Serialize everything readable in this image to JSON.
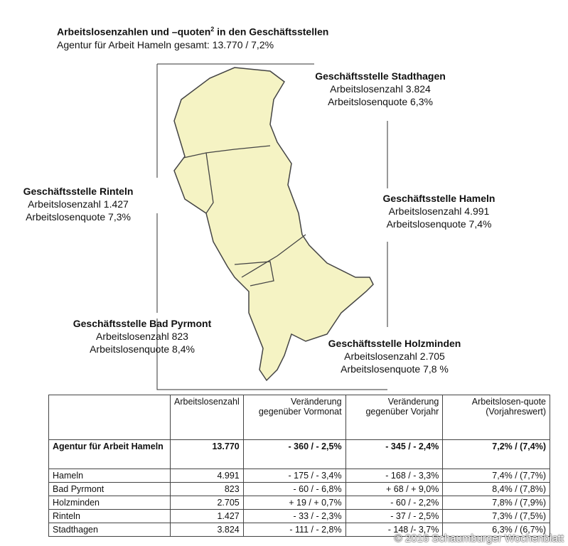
{
  "header": {
    "title": "Arbeitslosenzahlen und –quoten",
    "title_sup": "2",
    "title_tail": "in den Geschäftsstellen",
    "subtitle": "Agentur für Arbeit Hameln gesamt: 13.770 / 7,2%"
  },
  "map_labels": [
    {
      "name": "Geschäftsstelle Stadthagen",
      "zahl": "Arbeitslosenzahl 3.824",
      "quote": "Arbeitslosenquote 6,3%"
    },
    {
      "name": "Geschäftsstelle Rinteln",
      "zahl": "Arbeitslosenzahl 1.427",
      "quote": "Arbeitslosenquote 7,3%"
    },
    {
      "name": "Geschäftsstelle Hameln",
      "zahl": "Arbeitslosenzahl 4.991",
      "quote": "Arbeitslosenquote 7,4%"
    },
    {
      "name": "Geschäftsstelle Bad Pyrmont",
      "zahl": "Arbeitslosenzahl 823",
      "quote": "Arbeitslosenquote 8,4%"
    },
    {
      "name": "Geschäftsstelle Holzminden",
      "zahl": "Arbeitslosenzahl 2.705",
      "quote": "Arbeitslosenquote 7,8 %"
    }
  ],
  "map_fill": "#f5f3c4",
  "table": {
    "headers": [
      "",
      "Arbeitslosenzahl",
      "Veränderung gegenüber Vormonat",
      "Veränderung gegenüber Vorjahr",
      "Arbeitslosen-quote (Vorjahreswert)"
    ],
    "rows": [
      [
        "Agentur für Arbeit Hameln",
        "13.770",
        "- 360 / - 2,5%",
        "- 345 / - 2,4%",
        "7,2% / (7,4%)"
      ],
      [
        "Hameln",
        "4.991",
        "- 175 / - 3,4%",
        "- 168 / - 3,3%",
        "7,4% / (7,7%)"
      ],
      [
        "Bad Pyrmont",
        "823",
        "- 60 / - 6,8%",
        "+ 68 / + 9,0%",
        "8,4% / (7,8%)"
      ],
      [
        "Holzminden",
        "2.705",
        "+ 19 / + 0,7%",
        "- 60 / - 2,2%",
        "7,8% / (7,9%)"
      ],
      [
        "Rinteln",
        "1.427",
        "- 33 / - 2,3%",
        "- 37 / - 2,5%",
        "7,3% / (7,5%)"
      ],
      [
        "Stadthagen",
        "3.824",
        "- 111 / - 2,8%",
        "- 148 /- 3,7%",
        "6,3% / (6,7%)"
      ]
    ]
  },
  "copyright": "© 2016 Schaumburger Wochenblatt"
}
